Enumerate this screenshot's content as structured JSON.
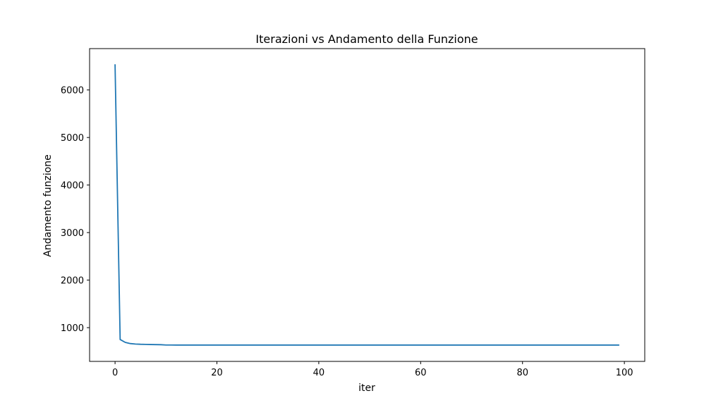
{
  "chart_data": {
    "type": "line",
    "title": "Iterazioni vs Andamento della Funzione",
    "xlabel": "iter",
    "ylabel": "Andamento funzione",
    "xlim": [
      -5,
      104
    ],
    "ylim": [
      290,
      6870
    ],
    "x_ticks": [
      0,
      20,
      40,
      60,
      80,
      100
    ],
    "y_ticks": [
      1000,
      2000,
      3000,
      4000,
      5000,
      6000
    ],
    "grid": false,
    "legend": "none",
    "line_color": "#1f77b4",
    "series": [
      {
        "x": [
          0,
          1,
          2,
          3,
          4,
          5,
          6,
          7,
          8,
          9,
          10,
          11,
          12,
          13,
          14,
          15,
          20,
          30,
          40,
          50,
          60,
          70,
          80,
          90,
          99
        ],
        "y": [
          6540,
          750,
          690,
          665,
          655,
          650,
          648,
          645,
          643,
          641,
          635,
          635,
          634,
          634,
          634,
          634,
          634,
          634,
          634,
          634,
          634,
          634,
          634,
          634,
          634
        ]
      }
    ]
  }
}
